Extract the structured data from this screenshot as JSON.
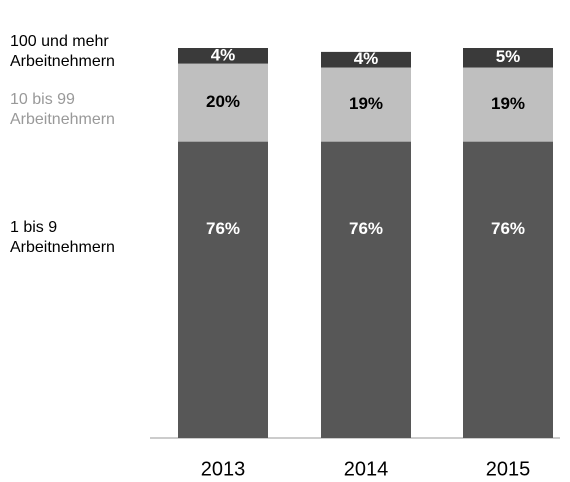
{
  "chart_data": {
    "type": "stacked_bar",
    "categories": [
      "2013",
      "2014",
      "2015"
    ],
    "series": [
      {
        "name": "1 bis 9 Arbeitnehmern",
        "color": "#575757",
        "label_color": "#ffffff",
        "values": [
          76,
          76,
          76
        ],
        "value_labels": [
          "76%",
          "76%",
          "76%"
        ]
      },
      {
        "name": "10 bis 99 Arbeitnehmern",
        "color": "#bfbfbf",
        "label_color": "#000000",
        "values": [
          20,
          19,
          19
        ],
        "value_labels": [
          "20%",
          "19%",
          "19%"
        ]
      },
      {
        "name": "100 und mehr Arbeitnehmern",
        "color": "#3a3a3a",
        "label_color": "#ffffff",
        "values": [
          4,
          4,
          5
        ],
        "value_labels": [
          "4%",
          "4%",
          "5%"
        ]
      }
    ]
  }
}
